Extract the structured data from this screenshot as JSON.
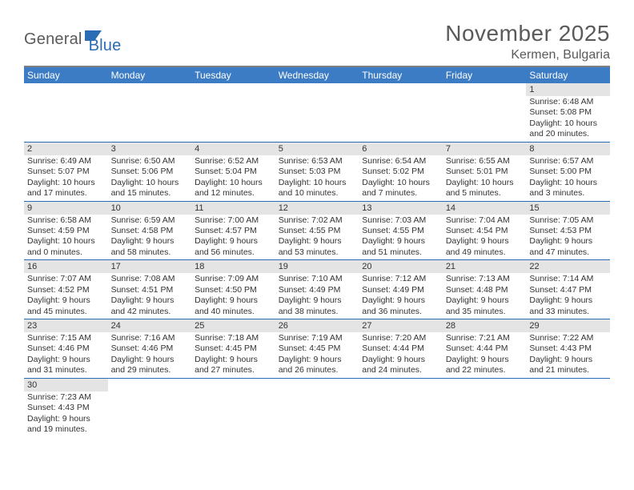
{
  "logo": {
    "part1": "General",
    "part2": "Blue"
  },
  "title": "November 2025",
  "location": "Kermen, Bulgaria",
  "colors": {
    "header_bg": "#3c7cc4",
    "daynum_bg": "#e4e4e4",
    "rule": "#2a6db5",
    "top_rule": "#808080",
    "logo_gray": "#5a5a5a",
    "logo_blue": "#2a6db5",
    "text": "#333333"
  },
  "weekdays": [
    "Sunday",
    "Monday",
    "Tuesday",
    "Wednesday",
    "Thursday",
    "Friday",
    "Saturday"
  ],
  "weeks": [
    [
      {
        "day": "",
        "lines": []
      },
      {
        "day": "",
        "lines": []
      },
      {
        "day": "",
        "lines": []
      },
      {
        "day": "",
        "lines": []
      },
      {
        "day": "",
        "lines": []
      },
      {
        "day": "",
        "lines": []
      },
      {
        "day": "1",
        "lines": [
          "Sunrise: 6:48 AM",
          "Sunset: 5:08 PM",
          "Daylight: 10 hours",
          "and 20 minutes."
        ]
      }
    ],
    [
      {
        "day": "2",
        "lines": [
          "Sunrise: 6:49 AM",
          "Sunset: 5:07 PM",
          "Daylight: 10 hours",
          "and 17 minutes."
        ]
      },
      {
        "day": "3",
        "lines": [
          "Sunrise: 6:50 AM",
          "Sunset: 5:06 PM",
          "Daylight: 10 hours",
          "and 15 minutes."
        ]
      },
      {
        "day": "4",
        "lines": [
          "Sunrise: 6:52 AM",
          "Sunset: 5:04 PM",
          "Daylight: 10 hours",
          "and 12 minutes."
        ]
      },
      {
        "day": "5",
        "lines": [
          "Sunrise: 6:53 AM",
          "Sunset: 5:03 PM",
          "Daylight: 10 hours",
          "and 10 minutes."
        ]
      },
      {
        "day": "6",
        "lines": [
          "Sunrise: 6:54 AM",
          "Sunset: 5:02 PM",
          "Daylight: 10 hours",
          "and 7 minutes."
        ]
      },
      {
        "day": "7",
        "lines": [
          "Sunrise: 6:55 AM",
          "Sunset: 5:01 PM",
          "Daylight: 10 hours",
          "and 5 minutes."
        ]
      },
      {
        "day": "8",
        "lines": [
          "Sunrise: 6:57 AM",
          "Sunset: 5:00 PM",
          "Daylight: 10 hours",
          "and 3 minutes."
        ]
      }
    ],
    [
      {
        "day": "9",
        "lines": [
          "Sunrise: 6:58 AM",
          "Sunset: 4:59 PM",
          "Daylight: 10 hours",
          "and 0 minutes."
        ]
      },
      {
        "day": "10",
        "lines": [
          "Sunrise: 6:59 AM",
          "Sunset: 4:58 PM",
          "Daylight: 9 hours",
          "and 58 minutes."
        ]
      },
      {
        "day": "11",
        "lines": [
          "Sunrise: 7:00 AM",
          "Sunset: 4:57 PM",
          "Daylight: 9 hours",
          "and 56 minutes."
        ]
      },
      {
        "day": "12",
        "lines": [
          "Sunrise: 7:02 AM",
          "Sunset: 4:55 PM",
          "Daylight: 9 hours",
          "and 53 minutes."
        ]
      },
      {
        "day": "13",
        "lines": [
          "Sunrise: 7:03 AM",
          "Sunset: 4:55 PM",
          "Daylight: 9 hours",
          "and 51 minutes."
        ]
      },
      {
        "day": "14",
        "lines": [
          "Sunrise: 7:04 AM",
          "Sunset: 4:54 PM",
          "Daylight: 9 hours",
          "and 49 minutes."
        ]
      },
      {
        "day": "15",
        "lines": [
          "Sunrise: 7:05 AM",
          "Sunset: 4:53 PM",
          "Daylight: 9 hours",
          "and 47 minutes."
        ]
      }
    ],
    [
      {
        "day": "16",
        "lines": [
          "Sunrise: 7:07 AM",
          "Sunset: 4:52 PM",
          "Daylight: 9 hours",
          "and 45 minutes."
        ]
      },
      {
        "day": "17",
        "lines": [
          "Sunrise: 7:08 AM",
          "Sunset: 4:51 PM",
          "Daylight: 9 hours",
          "and 42 minutes."
        ]
      },
      {
        "day": "18",
        "lines": [
          "Sunrise: 7:09 AM",
          "Sunset: 4:50 PM",
          "Daylight: 9 hours",
          "and 40 minutes."
        ]
      },
      {
        "day": "19",
        "lines": [
          "Sunrise: 7:10 AM",
          "Sunset: 4:49 PM",
          "Daylight: 9 hours",
          "and 38 minutes."
        ]
      },
      {
        "day": "20",
        "lines": [
          "Sunrise: 7:12 AM",
          "Sunset: 4:49 PM",
          "Daylight: 9 hours",
          "and 36 minutes."
        ]
      },
      {
        "day": "21",
        "lines": [
          "Sunrise: 7:13 AM",
          "Sunset: 4:48 PM",
          "Daylight: 9 hours",
          "and 35 minutes."
        ]
      },
      {
        "day": "22",
        "lines": [
          "Sunrise: 7:14 AM",
          "Sunset: 4:47 PM",
          "Daylight: 9 hours",
          "and 33 minutes."
        ]
      }
    ],
    [
      {
        "day": "23",
        "lines": [
          "Sunrise: 7:15 AM",
          "Sunset: 4:46 PM",
          "Daylight: 9 hours",
          "and 31 minutes."
        ]
      },
      {
        "day": "24",
        "lines": [
          "Sunrise: 7:16 AM",
          "Sunset: 4:46 PM",
          "Daylight: 9 hours",
          "and 29 minutes."
        ]
      },
      {
        "day": "25",
        "lines": [
          "Sunrise: 7:18 AM",
          "Sunset: 4:45 PM",
          "Daylight: 9 hours",
          "and 27 minutes."
        ]
      },
      {
        "day": "26",
        "lines": [
          "Sunrise: 7:19 AM",
          "Sunset: 4:45 PM",
          "Daylight: 9 hours",
          "and 26 minutes."
        ]
      },
      {
        "day": "27",
        "lines": [
          "Sunrise: 7:20 AM",
          "Sunset: 4:44 PM",
          "Daylight: 9 hours",
          "and 24 minutes."
        ]
      },
      {
        "day": "28",
        "lines": [
          "Sunrise: 7:21 AM",
          "Sunset: 4:44 PM",
          "Daylight: 9 hours",
          "and 22 minutes."
        ]
      },
      {
        "day": "29",
        "lines": [
          "Sunrise: 7:22 AM",
          "Sunset: 4:43 PM",
          "Daylight: 9 hours",
          "and 21 minutes."
        ]
      }
    ],
    [
      {
        "day": "30",
        "lines": [
          "Sunrise: 7:23 AM",
          "Sunset: 4:43 PM",
          "Daylight: 9 hours",
          "and 19 minutes."
        ]
      },
      {
        "day": "",
        "lines": []
      },
      {
        "day": "",
        "lines": []
      },
      {
        "day": "",
        "lines": []
      },
      {
        "day": "",
        "lines": []
      },
      {
        "day": "",
        "lines": []
      },
      {
        "day": "",
        "lines": []
      }
    ]
  ]
}
